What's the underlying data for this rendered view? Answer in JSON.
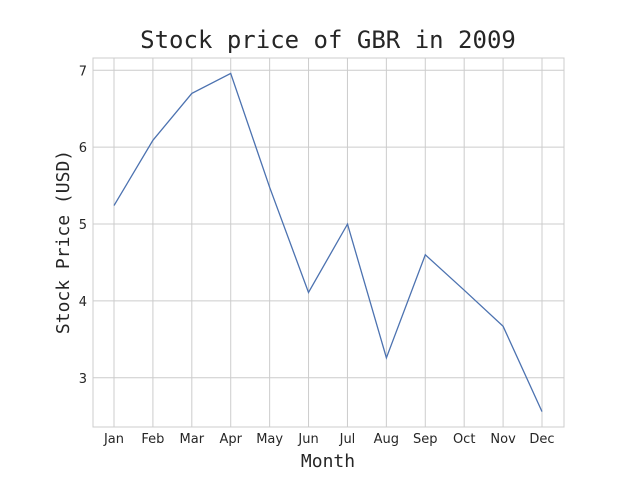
{
  "chart_data": {
    "type": "line",
    "title": "Stock price of GBR in 2009",
    "xlabel": "Month",
    "ylabel": "Stock Price (USD)",
    "categories": [
      "Jan",
      "Feb",
      "Mar",
      "Apr",
      "May",
      "Jun",
      "Jul",
      "Aug",
      "Sep",
      "Oct",
      "Nov",
      "Dec"
    ],
    "series": [
      {
        "values": [
          5.24,
          6.09,
          6.7,
          6.96,
          5.48,
          4.11,
          5.0,
          3.26,
          4.6,
          4.14,
          3.67,
          2.56
        ],
        "color": "#4c72b0"
      }
    ],
    "yticks": [
      3,
      4,
      5,
      6,
      7
    ],
    "ylim": [
      2.36,
      7.16
    ],
    "grid": true,
    "legend": "none"
  }
}
